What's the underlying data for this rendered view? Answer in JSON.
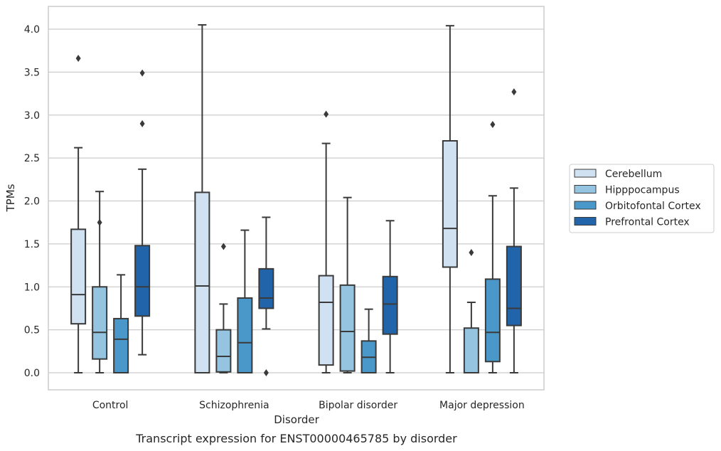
{
  "colors": {
    "Cerebellum": "#d0e1f2",
    "Hipppocampus": "#94c4df",
    "Orbitofontal Cortex": "#4a98c9",
    "Prefrontal Cortex": "#2264a9",
    "line": "#3a3a3a",
    "grid": "#cccccc",
    "frame": "#cccccc"
  },
  "caption": "Transcript expression for ENST00000465785 by disorder",
  "chart_data": {
    "type": "box",
    "xlabel": "Disorder",
    "ylabel": "TPMs",
    "ylim": [
      -0.2,
      4.25
    ],
    "yticks": [
      "0.0",
      "0.5",
      "1.0",
      "1.5",
      "2.0",
      "2.5",
      "3.0",
      "3.5",
      "4.0"
    ],
    "grid": "horizontal",
    "legend_position": "right",
    "categories": [
      "Control",
      "Schizophrenia",
      "Bipolar disorder",
      "Major depression"
    ],
    "series": [
      {
        "name": "Cerebellum",
        "boxes": [
          {
            "whisker_low": 0.0,
            "q1": 0.57,
            "median": 0.91,
            "q3": 1.67,
            "whisker_high": 2.62,
            "outliers": [
              3.66
            ]
          },
          {
            "whisker_low": 0.0,
            "q1": 0.0,
            "median": 1.01,
            "q3": 2.1,
            "whisker_high": 4.05,
            "outliers": []
          },
          {
            "whisker_low": 0.0,
            "q1": 0.09,
            "median": 0.82,
            "q3": 1.13,
            "whisker_high": 2.67,
            "outliers": [
              3.01
            ]
          },
          {
            "whisker_low": 0.0,
            "q1": 1.23,
            "median": 1.68,
            "q3": 2.7,
            "whisker_high": 4.04,
            "outliers": []
          }
        ]
      },
      {
        "name": "Hipppocampus",
        "boxes": [
          {
            "whisker_low": 0.0,
            "q1": 0.16,
            "median": 0.47,
            "q3": 1.0,
            "whisker_high": 2.11,
            "outliers": [
              1.75
            ]
          },
          {
            "whisker_low": 0.0,
            "q1": 0.01,
            "median": 0.19,
            "q3": 0.5,
            "whisker_high": 0.8,
            "outliers": [
              1.47
            ]
          },
          {
            "whisker_low": 0.0,
            "q1": 0.02,
            "median": 0.48,
            "q3": 1.02,
            "whisker_high": 2.04,
            "outliers": []
          },
          {
            "whisker_low": 0.0,
            "q1": 0.0,
            "median": 0.0,
            "q3": 0.52,
            "whisker_high": 0.82,
            "outliers": [
              1.4
            ]
          }
        ]
      },
      {
        "name": "Orbitofontal Cortex",
        "boxes": [
          {
            "whisker_low": 0.0,
            "q1": 0.0,
            "median": 0.39,
            "q3": 0.63,
            "whisker_high": 1.14,
            "outliers": []
          },
          {
            "whisker_low": 0.0,
            "q1": 0.0,
            "median": 0.35,
            "q3": 0.87,
            "whisker_high": 1.66,
            "outliers": []
          },
          {
            "whisker_low": 0.0,
            "q1": 0.0,
            "median": 0.18,
            "q3": 0.37,
            "whisker_high": 0.74,
            "outliers": []
          },
          {
            "whisker_low": 0.0,
            "q1": 0.13,
            "median": 0.47,
            "q3": 1.09,
            "whisker_high": 2.06,
            "outliers": [
              2.89
            ]
          }
        ]
      },
      {
        "name": "Prefrontal Cortex",
        "boxes": [
          {
            "whisker_low": 0.21,
            "q1": 0.66,
            "median": 1.0,
            "q3": 1.48,
            "whisker_high": 2.37,
            "outliers": [
              2.9,
              3.49
            ]
          },
          {
            "whisker_low": 0.51,
            "q1": 0.75,
            "median": 0.87,
            "q3": 1.21,
            "whisker_high": 1.81,
            "outliers": [
              0.0
            ]
          },
          {
            "whisker_low": 0.0,
            "q1": 0.45,
            "median": 0.8,
            "q3": 1.12,
            "whisker_high": 1.77,
            "outliers": []
          },
          {
            "whisker_low": 0.0,
            "q1": 0.55,
            "median": 0.75,
            "q3": 1.47,
            "whisker_high": 2.15,
            "outliers": [
              3.27
            ]
          }
        ]
      }
    ]
  }
}
